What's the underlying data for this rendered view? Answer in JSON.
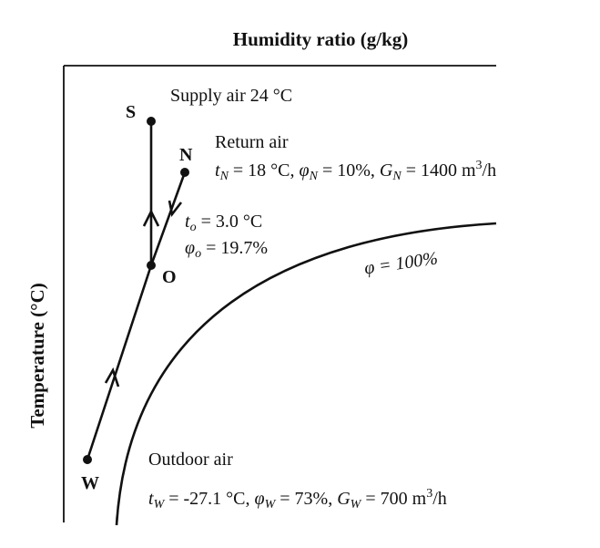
{
  "axes": {
    "top_title": "Humidity ratio (g/kg)",
    "left_title": "Temperature (°C)"
  },
  "points": {
    "S": "S",
    "N": "N",
    "O": "O",
    "W": "W"
  },
  "supply": {
    "text": "Supply air  24 °C"
  },
  "return_air": {
    "title": "Return air",
    "t_sym": "t",
    "t_sub": "N",
    "t_val": " = 18 °C, ",
    "phi_sym": "φ",
    "phi_sub": "N",
    "phi_val": " = 10%, ",
    "g_sym": "G",
    "g_sub": "N",
    "g_val": " = 1400 m",
    "g_sup": "3",
    "g_unit": "/h"
  },
  "mix": {
    "t_sym": "t",
    "t_sub": "o",
    "t_val": " = 3.0 °C",
    "phi_sym": "φ",
    "phi_sub": "o",
    "phi_val": " = 19.7%"
  },
  "saturation": {
    "label": "φ = 100%"
  },
  "outdoor": {
    "title": "Outdoor air",
    "t_sym": "t",
    "t_sub": "W",
    "t_val": " = -27.1 °C, ",
    "phi_sym": "φ",
    "phi_sub": "W",
    "phi_val": " = 73%, ",
    "g_sym": "G",
    "g_sub": "W",
    "g_val": " = 700 m",
    "g_sup": "3",
    "g_unit": "/h"
  }
}
